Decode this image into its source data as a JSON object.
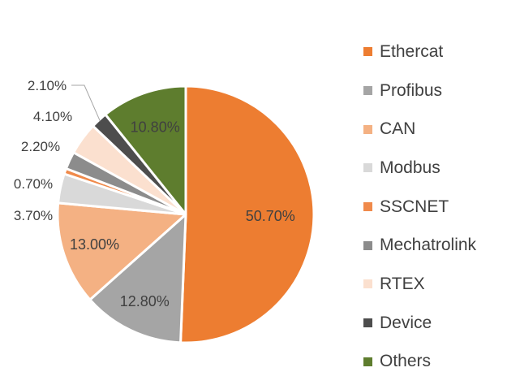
{
  "chart_data": {
    "type": "pie",
    "title": "",
    "legend_position": "right",
    "series": [
      {
        "name": "Ethercat",
        "value": 50.7,
        "label": "50.70%",
        "color": "#ED7D31"
      },
      {
        "name": "Profibus",
        "value": 12.8,
        "label": "12.80%",
        "color": "#A5A5A5"
      },
      {
        "name": "CAN",
        "value": 13.0,
        "label": "13.00%",
        "color": "#F4B183"
      },
      {
        "name": "Modbus",
        "value": 3.7,
        "label": "3.70%",
        "color": "#D9D9D9"
      },
      {
        "name": "SSCNET",
        "value": 0.7,
        "label": "0.70%",
        "color": "#F08A4B"
      },
      {
        "name": "Mechatrolink",
        "value": 2.2,
        "label": "2.20%",
        "color": "#8C8C8C"
      },
      {
        "name": "RTEX",
        "value": 4.1,
        "label": "4.10%",
        "color": "#FBE0CF"
      },
      {
        "name": "Device",
        "value": 2.1,
        "label": "2.10%",
        "color": "#4D4D4D"
      },
      {
        "name": "Others",
        "value": 10.8,
        "label": "10.80%",
        "color": "#5E7D2E"
      }
    ]
  }
}
